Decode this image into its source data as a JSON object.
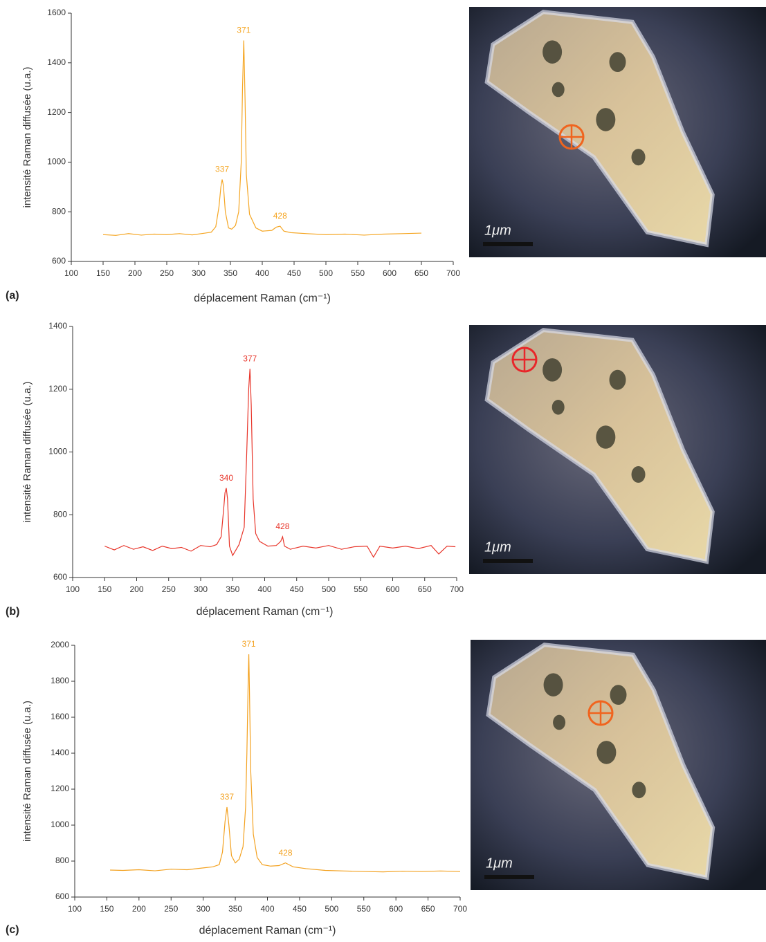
{
  "chart_data": [
    {
      "type": "line",
      "panel_label": "(a)",
      "x_label": "déplacement Raman (cm⁻¹)",
      "y_label": "intensité Raman diffusée (u.a.)",
      "xlim": [
        100,
        700
      ],
      "xticks": [
        100,
        150,
        200,
        250,
        300,
        350,
        400,
        450,
        500,
        550,
        600,
        650,
        700
      ],
      "ylim": [
        600,
        1600
      ],
      "yticks": [
        600,
        800,
        1000,
        1200,
        1400,
        1600
      ],
      "series": [
        {
          "color": "#f5a623",
          "x": [
            150,
            170,
            190,
            210,
            230,
            250,
            270,
            290,
            310,
            320,
            327,
            332,
            335,
            337,
            339,
            342,
            347,
            352,
            358,
            363,
            367,
            369,
            371,
            373,
            375,
            380,
            390,
            400,
            415,
            422,
            428,
            434,
            445,
            470,
            500,
            530,
            560,
            590,
            620,
            650
          ],
          "values": [
            708,
            705,
            712,
            706,
            710,
            708,
            712,
            707,
            714,
            718,
            740,
            820,
            900,
            930,
            905,
            800,
            735,
            730,
            745,
            800,
            1000,
            1300,
            1490,
            1250,
            950,
            790,
            735,
            722,
            725,
            738,
            742,
            722,
            716,
            712,
            708,
            710,
            706,
            710,
            712,
            714
          ]
        }
      ],
      "annotations": [
        {
          "text": "371",
          "x": 371,
          "y": 1490
        },
        {
          "text": "337",
          "x": 337,
          "y": 930
        },
        {
          "text": "428",
          "x": 428,
          "y": 742
        }
      ],
      "image": {
        "scale_label": "1μm",
        "marker_color": "#f0641e"
      }
    },
    {
      "type": "line",
      "panel_label": "(b)",
      "x_label": "déplacement Raman (cm⁻¹)",
      "y_label": "intensité Raman diffusée (u.a.)",
      "xlim": [
        100,
        700
      ],
      "xticks": [
        100,
        150,
        200,
        250,
        300,
        350,
        400,
        450,
        500,
        550,
        600,
        650,
        700
      ],
      "ylim": [
        600,
        1400
      ],
      "yticks": [
        600,
        800,
        1000,
        1200,
        1400
      ],
      "series": [
        {
          "color": "#e8352a",
          "x": [
            150,
            165,
            180,
            195,
            210,
            225,
            240,
            255,
            270,
            285,
            300,
            315,
            325,
            332,
            336,
            338,
            340,
            342,
            345,
            350,
            360,
            368,
            372,
            375,
            377,
            379,
            382,
            386,
            392,
            405,
            418,
            425,
            428,
            431,
            440,
            460,
            480,
            500,
            520,
            540,
            560,
            570,
            580,
            600,
            620,
            640,
            660,
            672,
            685,
            698
          ],
          "values": [
            700,
            688,
            702,
            690,
            698,
            686,
            700,
            692,
            696,
            684,
            702,
            698,
            705,
            730,
            820,
            870,
            885,
            850,
            700,
            670,
            705,
            760,
            1000,
            1200,
            1265,
            1150,
            850,
            740,
            715,
            700,
            702,
            715,
            730,
            700,
            690,
            700,
            694,
            702,
            690,
            698,
            700,
            665,
            700,
            694,
            700,
            692,
            702,
            675,
            700,
            698
          ]
        }
      ],
      "annotations": [
        {
          "text": "377",
          "x": 377,
          "y": 1265
        },
        {
          "text": "340",
          "x": 340,
          "y": 885
        },
        {
          "text": "428",
          "x": 428,
          "y": 730
        }
      ],
      "image": {
        "scale_label": "1μm",
        "marker_color": "#e8262a"
      }
    },
    {
      "type": "line",
      "panel_label": "(c)",
      "x_label": "déplacement Raman (cm⁻¹)",
      "y_label": "intensité Raman diffusée (u.a.)",
      "xlim": [
        100,
        700
      ],
      "xticks": [
        100,
        150,
        200,
        250,
        300,
        350,
        400,
        450,
        500,
        550,
        600,
        650,
        700
      ],
      "ylim": [
        600,
        2000
      ],
      "yticks": [
        600,
        800,
        1000,
        1200,
        1400,
        1600,
        1800,
        2000
      ],
      "series": [
        {
          "color": "#f3a11f",
          "x": [
            155,
            175,
            200,
            225,
            250,
            275,
            300,
            315,
            325,
            330,
            334,
            337,
            340,
            344,
            350,
            356,
            362,
            366,
            368,
            370,
            371,
            372,
            374,
            378,
            384,
            392,
            405,
            418,
            428,
            440,
            460,
            490,
            520,
            550,
            580,
            610,
            640,
            670,
            700
          ],
          "values": [
            750,
            748,
            752,
            746,
            755,
            752,
            762,
            768,
            780,
            850,
            1020,
            1100,
            1000,
            830,
            790,
            810,
            880,
            1100,
            1400,
            1800,
            1950,
            1750,
            1300,
            950,
            820,
            780,
            772,
            775,
            790,
            768,
            758,
            748,
            745,
            742,
            740,
            744,
            742,
            745,
            742
          ]
        }
      ],
      "annotations": [
        {
          "text": "371",
          "x": 371,
          "y": 1950
        },
        {
          "text": "337",
          "x": 337,
          "y": 1100
        },
        {
          "text": "428",
          "x": 428,
          "y": 790
        }
      ],
      "image": {
        "scale_label": "1μm",
        "marker_color": "#f0641e"
      }
    }
  ]
}
